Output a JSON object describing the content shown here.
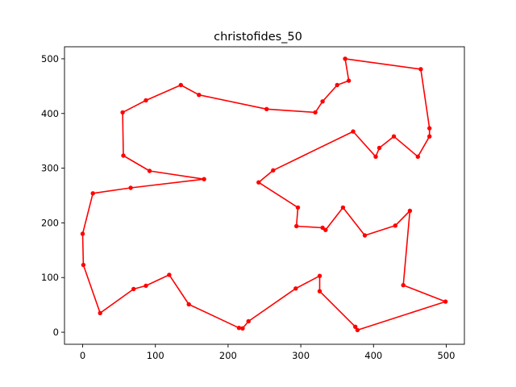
{
  "chart_data": {
    "type": "line",
    "title": "christofides_50",
    "xlabel": "",
    "ylabel": "",
    "xlim": [
      -25,
      525
    ],
    "ylim": [
      -22,
      522
    ],
    "xticks": [
      0,
      100,
      200,
      300,
      400,
      500
    ],
    "yticks": [
      0,
      100,
      200,
      300,
      400,
      500
    ],
    "grid": false,
    "series": [
      {
        "color": "#ff0000",
        "marker": "circle",
        "x": [
          361,
          366,
          350,
          330,
          320,
          253,
          160,
          135,
          87,
          55,
          56,
          92,
          167,
          66,
          14,
          0,
          1,
          24,
          70,
          87,
          119,
          146,
          215,
          220,
          228,
          293,
          326,
          326,
          375,
          378,
          499,
          441,
          450,
          430,
          388,
          358,
          334,
          330,
          294,
          296,
          242,
          262,
          372,
          403,
          408,
          428,
          461,
          477,
          477,
          465,
          361
        ],
        "y": [
          500,
          460,
          452,
          422,
          402,
          408,
          434,
          452,
          424,
          402,
          323,
          295,
          280,
          264,
          254,
          180,
          123,
          35,
          79,
          85,
          105,
          51,
          8,
          7,
          20,
          80,
          103,
          75,
          10,
          4,
          56,
          86,
          222,
          195,
          177,
          228,
          187,
          191,
          194,
          228,
          274,
          296,
          367,
          321,
          337,
          358,
          321,
          358,
          373,
          481,
          500
        ]
      }
    ]
  }
}
